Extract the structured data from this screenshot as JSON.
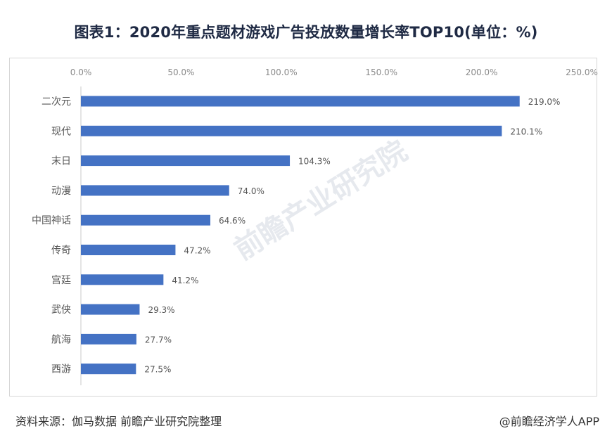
{
  "chart_data": {
    "type": "bar",
    "orientation": "horizontal",
    "title": "图表1：2020年重点题材游戏广告投放数量增长率TOP10(单位：%)",
    "categories": [
      "二次元",
      "现代",
      "末日",
      "动漫",
      "中国神话",
      "传奇",
      "宫廷",
      "武侠",
      "航海",
      "西游"
    ],
    "values": [
      219.0,
      210.1,
      104.3,
      74.0,
      64.6,
      47.2,
      41.2,
      29.3,
      27.7,
      27.5
    ],
    "value_labels": [
      "219.0%",
      "210.1%",
      "104.3%",
      "74.0%",
      "64.6%",
      "47.2%",
      "41.2%",
      "29.3%",
      "27.7%",
      "27.5%"
    ],
    "xlim": [
      0,
      250
    ],
    "x_ticks": [
      0,
      50,
      100,
      150,
      200,
      250
    ],
    "x_tick_labels": [
      "0.0%",
      "50.0%",
      "100.0%",
      "150.0%",
      "200.0%",
      "250.0%"
    ],
    "axis_position": "top",
    "bar_color": "#4472c4",
    "grid": false
  },
  "footer": {
    "source": "资料来源：伽马数据 前瞻产业研究院整理",
    "brand": "@前瞻经济学人APP"
  },
  "watermark": {
    "text": "前瞻产业研究院"
  }
}
